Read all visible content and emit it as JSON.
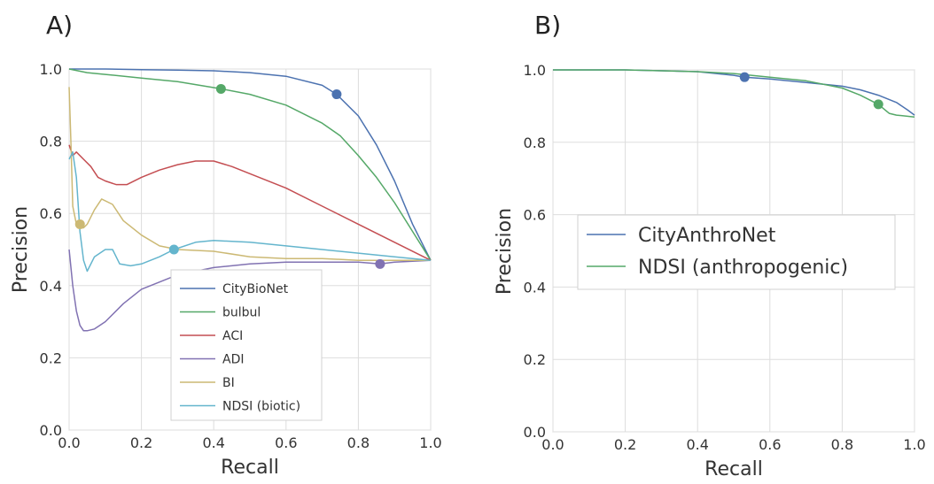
{
  "chart_data": [
    {
      "panel_label": "A)",
      "type": "line",
      "xlabel": "Recall",
      "ylabel": "Precision",
      "xlim": [
        0,
        1
      ],
      "ylim": [
        0,
        1
      ],
      "xticks": [
        "0.0",
        "0.2",
        "0.4",
        "0.6",
        "0.8",
        "1.0"
      ],
      "yticks": [
        "0.0",
        "0.2",
        "0.4",
        "0.6",
        "0.8",
        "1.0"
      ],
      "grid": true,
      "legend_position": "lower-center",
      "series": [
        {
          "name": "CityBioNet",
          "color": "#4c72b0",
          "x": [
            0.0,
            0.1,
            0.2,
            0.3,
            0.4,
            0.5,
            0.6,
            0.7,
            0.74,
            0.8,
            0.85,
            0.9,
            0.95,
            1.0
          ],
          "y": [
            1.0,
            1.0,
            0.998,
            0.997,
            0.995,
            0.99,
            0.98,
            0.955,
            0.93,
            0.87,
            0.79,
            0.69,
            0.57,
            0.47
          ],
          "marker": {
            "x": 0.74,
            "y": 0.93
          }
        },
        {
          "name": "bulbul",
          "color": "#55a868",
          "x": [
            0.0,
            0.05,
            0.1,
            0.2,
            0.3,
            0.42,
            0.5,
            0.6,
            0.7,
            0.75,
            0.8,
            0.85,
            0.9,
            0.95,
            1.0
          ],
          "y": [
            1.0,
            0.99,
            0.985,
            0.975,
            0.965,
            0.945,
            0.93,
            0.9,
            0.85,
            0.815,
            0.76,
            0.7,
            0.63,
            0.55,
            0.47
          ],
          "marker": {
            "x": 0.42,
            "y": 0.945
          }
        },
        {
          "name": "ACI",
          "color": "#c44e52",
          "x": [
            0.0,
            0.01,
            0.02,
            0.04,
            0.06,
            0.08,
            0.1,
            0.13,
            0.16,
            0.2,
            0.25,
            0.3,
            0.35,
            0.4,
            0.45,
            0.5,
            0.6,
            0.7,
            0.8,
            0.9,
            1.0
          ],
          "y": [
            0.79,
            0.76,
            0.77,
            0.75,
            0.73,
            0.7,
            0.69,
            0.68,
            0.68,
            0.7,
            0.72,
            0.735,
            0.745,
            0.745,
            0.73,
            0.71,
            0.67,
            0.62,
            0.57,
            0.52,
            0.47
          ]
        },
        {
          "name": "ADI",
          "color": "#8172b2",
          "x": [
            0.0,
            0.01,
            0.02,
            0.03,
            0.04,
            0.05,
            0.07,
            0.1,
            0.15,
            0.2,
            0.3,
            0.4,
            0.5,
            0.6,
            0.7,
            0.8,
            0.86,
            0.9,
            1.0
          ],
          "y": [
            0.5,
            0.4,
            0.33,
            0.29,
            0.275,
            0.275,
            0.28,
            0.3,
            0.35,
            0.39,
            0.43,
            0.45,
            0.46,
            0.465,
            0.465,
            0.465,
            0.46,
            0.465,
            0.47
          ],
          "marker": {
            "x": 0.86,
            "y": 0.46
          }
        },
        {
          "name": "BI",
          "color": "#ccb974",
          "x": [
            0.0,
            0.005,
            0.01,
            0.02,
            0.03,
            0.04,
            0.05,
            0.07,
            0.09,
            0.12,
            0.15,
            0.2,
            0.25,
            0.3,
            0.4,
            0.5,
            0.6,
            0.7,
            0.8,
            0.9,
            1.0
          ],
          "y": [
            0.95,
            0.8,
            0.62,
            0.57,
            0.56,
            0.56,
            0.57,
            0.61,
            0.64,
            0.625,
            0.58,
            0.54,
            0.51,
            0.5,
            0.495,
            0.48,
            0.475,
            0.475,
            0.47,
            0.47,
            0.47
          ],
          "marker": {
            "x": 0.03,
            "y": 0.57
          }
        },
        {
          "name": "NDSI (biotic)",
          "color": "#64b5cd",
          "x": [
            0.0,
            0.01,
            0.02,
            0.03,
            0.04,
            0.05,
            0.07,
            0.1,
            0.12,
            0.14,
            0.17,
            0.2,
            0.25,
            0.29,
            0.35,
            0.4,
            0.5,
            0.6,
            0.7,
            0.8,
            0.9,
            1.0
          ],
          "y": [
            0.75,
            0.77,
            0.7,
            0.55,
            0.47,
            0.44,
            0.48,
            0.5,
            0.5,
            0.46,
            0.455,
            0.46,
            0.48,
            0.5,
            0.52,
            0.525,
            0.52,
            0.51,
            0.5,
            0.49,
            0.48,
            0.47
          ],
          "marker": {
            "x": 0.29,
            "y": 0.5
          }
        }
      ]
    },
    {
      "panel_label": "B)",
      "type": "line",
      "xlabel": "Recall",
      "ylabel": "Precision",
      "xlim": [
        0,
        1
      ],
      "ylim": [
        0,
        1
      ],
      "xticks": [
        "0.0",
        "0.2",
        "0.4",
        "0.6",
        "0.8",
        "1.0"
      ],
      "yticks": [
        "0.0",
        "0.2",
        "0.4",
        "0.6",
        "0.8",
        "1.0"
      ],
      "grid": true,
      "legend_position": "center",
      "series": [
        {
          "name": "CityAnthroNet",
          "color": "#4c72b0",
          "x": [
            0.0,
            0.2,
            0.4,
            0.5,
            0.53,
            0.6,
            0.7,
            0.8,
            0.85,
            0.9,
            0.95,
            0.98,
            1.0
          ],
          "y": [
            1.0,
            1.0,
            0.995,
            0.985,
            0.98,
            0.975,
            0.965,
            0.955,
            0.945,
            0.93,
            0.91,
            0.89,
            0.875
          ],
          "marker": {
            "x": 0.53,
            "y": 0.98
          }
        },
        {
          "name": "NDSI (anthropogenic)",
          "color": "#55a868",
          "x": [
            0.0,
            0.2,
            0.4,
            0.5,
            0.6,
            0.7,
            0.8,
            0.85,
            0.9,
            0.93,
            0.95,
            1.0
          ],
          "y": [
            1.0,
            1.0,
            0.995,
            0.99,
            0.98,
            0.97,
            0.95,
            0.93,
            0.905,
            0.88,
            0.875,
            0.87
          ],
          "marker": {
            "x": 0.9,
            "y": 0.905
          }
        }
      ]
    }
  ]
}
